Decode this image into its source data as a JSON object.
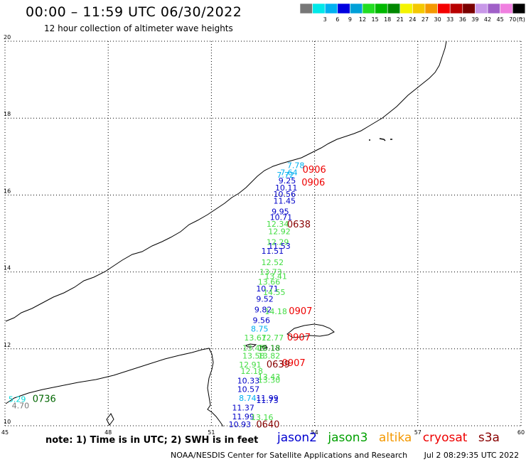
{
  "header": {
    "title": "00:00 – 11:59 UTC 06/30/2022",
    "subtitle": "12 hour collection of altimeter wave heights"
  },
  "legend": {
    "unit": "(ft)",
    "bins": [
      {
        "label": "",
        "color": "#777777"
      },
      {
        "label": "3",
        "color": "#00e8e8"
      },
      {
        "label": "6",
        "color": "#00b0f0"
      },
      {
        "label": "9",
        "color": "#0000e0"
      },
      {
        "label": "12",
        "color": "#00a0d8"
      },
      {
        "label": "15",
        "color": "#22dd22"
      },
      {
        "label": "18",
        "color": "#00b800"
      },
      {
        "label": "21",
        "color": "#008800"
      },
      {
        "label": "24",
        "color": "#f4f400"
      },
      {
        "label": "27",
        "color": "#f4c800"
      },
      {
        "label": "30",
        "color": "#f49800"
      },
      {
        "label": "33",
        "color": "#f40000"
      },
      {
        "label": "36",
        "color": "#b80000"
      },
      {
        "label": "39",
        "color": "#7a0000"
      },
      {
        "label": "42",
        "color": "#c898e8"
      },
      {
        "label": "45",
        "color": "#a060c8"
      },
      {
        "label": "70",
        "color": "#f080e0"
      },
      {
        "label": "",
        "color": "#000000"
      }
    ]
  },
  "axes": {
    "x_ticks": [
      "45",
      "48",
      "51",
      "54",
      "57",
      "60"
    ],
    "y_ticks": [
      "10",
      "12",
      "14",
      "16",
      "18",
      "20"
    ],
    "x_range": [
      45,
      60
    ],
    "y_range": [
      10,
      20
    ]
  },
  "observations": [
    {
      "text": "7.78",
      "lon": 53.2,
      "lat": 16.7,
      "color": "#00b0f0"
    },
    {
      "text": "7.64",
      "lon": 53.0,
      "lat": 16.52,
      "color": "#00b0f0"
    },
    {
      "text": "7.72",
      "lon": 52.9,
      "lat": 16.45,
      "color": "#00b0f0"
    },
    {
      "text": "9.25",
      "lon": 52.95,
      "lat": 16.3,
      "color": "#0000c8"
    },
    {
      "text": "10.11",
      "lon": 52.85,
      "lat": 16.12,
      "color": "#0000c8"
    },
    {
      "text": "10.56",
      "lon": 52.8,
      "lat": 15.95,
      "color": "#0000c8"
    },
    {
      "text": "11.45",
      "lon": 52.8,
      "lat": 15.78,
      "color": "#0000c8"
    },
    {
      "text": "9.95",
      "lon": 52.75,
      "lat": 15.5,
      "color": "#0000c8"
    },
    {
      "text": "10.71",
      "lon": 52.7,
      "lat": 15.35,
      "color": "#0000c8"
    },
    {
      "text": "12.34",
      "lon": 52.6,
      "lat": 15.18,
      "color": "#44dd44"
    },
    {
      "text": "12.92",
      "lon": 52.65,
      "lat": 14.98,
      "color": "#44dd44"
    },
    {
      "text": "12.29",
      "lon": 52.6,
      "lat": 14.7,
      "color": "#44dd44"
    },
    {
      "text": "11.53",
      "lon": 52.65,
      "lat": 14.6,
      "color": "#0000c8"
    },
    {
      "text": "11.51",
      "lon": 52.45,
      "lat": 14.47,
      "color": "#0000c8"
    },
    {
      "text": "12.52",
      "lon": 52.45,
      "lat": 14.18,
      "color": "#44dd44"
    },
    {
      "text": "13.73",
      "lon": 52.4,
      "lat": 13.93,
      "color": "#44dd44"
    },
    {
      "text": "13.41",
      "lon": 52.55,
      "lat": 13.82,
      "color": "#44dd44"
    },
    {
      "text": "13.66",
      "lon": 52.35,
      "lat": 13.67,
      "color": "#44dd44"
    },
    {
      "text": "10.71",
      "lon": 52.3,
      "lat": 13.49,
      "color": "#0000c8"
    },
    {
      "text": "14.55",
      "lon": 52.5,
      "lat": 13.4,
      "color": "#44dd44"
    },
    {
      "text": "9.52",
      "lon": 52.3,
      "lat": 13.23,
      "color": "#0000c8"
    },
    {
      "text": "9.82",
      "lon": 52.25,
      "lat": 12.95,
      "color": "#0000c8"
    },
    {
      "text": "14.18",
      "lon": 52.55,
      "lat": 12.9,
      "color": "#44dd44"
    },
    {
      "text": "9.56",
      "lon": 52.2,
      "lat": 12.67,
      "color": "#0000c8"
    },
    {
      "text": "8.75",
      "lon": 52.15,
      "lat": 12.45,
      "color": "#00b0f0"
    },
    {
      "text": "13.67",
      "lon": 51.95,
      "lat": 12.22,
      "color": "#44dd44"
    },
    {
      "text": "12.77",
      "lon": 52.45,
      "lat": 12.22,
      "color": "#44dd44"
    },
    {
      "text": "13.45",
      "lon": 51.9,
      "lat": 11.95,
      "color": "#44dd44"
    },
    {
      "text": "15.18",
      "lon": 52.35,
      "lat": 11.95,
      "color": "#008800"
    },
    {
      "text": "13.58",
      "lon": 51.9,
      "lat": 11.75,
      "color": "#44dd44"
    },
    {
      "text": "13.82",
      "lon": 52.35,
      "lat": 11.75,
      "color": "#44dd44"
    },
    {
      "text": "12.91",
      "lon": 51.8,
      "lat": 11.52,
      "color": "#44dd44"
    },
    {
      "text": "12.18",
      "lon": 51.85,
      "lat": 11.35,
      "color": "#44dd44"
    },
    {
      "text": "13.43",
      "lon": 52.35,
      "lat": 11.2,
      "color": "#44dd44"
    },
    {
      "text": "13.30",
      "lon": 52.35,
      "lat": 11.12,
      "color": "#44dd44"
    },
    {
      "text": "10.33",
      "lon": 51.75,
      "lat": 11.1,
      "color": "#0000c8"
    },
    {
      "text": "10.57",
      "lon": 51.75,
      "lat": 10.88,
      "color": "#0000c8"
    },
    {
      "text": "8.74",
      "lon": 51.8,
      "lat": 10.65,
      "color": "#00b0f0"
    },
    {
      "text": "11.99",
      "lon": 52.3,
      "lat": 10.65,
      "color": "#0000c8"
    },
    {
      "text": "11.73",
      "lon": 52.3,
      "lat": 10.59,
      "color": "#0000c8"
    },
    {
      "text": "11.37",
      "lon": 51.6,
      "lat": 10.4,
      "color": "#0000c8"
    },
    {
      "text": "11.99",
      "lon": 51.6,
      "lat": 10.17,
      "color": "#0000c8"
    },
    {
      "text": "13.16",
      "lon": 52.15,
      "lat": 10.15,
      "color": "#44dd44"
    },
    {
      "text": "10.93",
      "lon": 51.5,
      "lat": 9.96,
      "color": "#0000c8"
    },
    {
      "text": "5.29",
      "lon": 45.1,
      "lat": 10.62,
      "color": "#00d8d8"
    },
    {
      "text": "4.70",
      "lon": 45.2,
      "lat": 10.45,
      "color": "#777777"
    }
  ],
  "pass_times": [
    {
      "text": "0906",
      "lon": 53.65,
      "lat": 16.58,
      "color": "#ee0000"
    },
    {
      "text": "0906",
      "lon": 53.62,
      "lat": 16.25,
      "color": "#ee0000"
    },
    {
      "text": "0638",
      "lon": 53.2,
      "lat": 15.16,
      "color": "#880000"
    },
    {
      "text": "0907",
      "lon": 53.25,
      "lat": 12.9,
      "color": "#ee0000"
    },
    {
      "text": "0907",
      "lon": 53.2,
      "lat": 12.22,
      "color": "#ee0000"
    },
    {
      "text": "0907",
      "lon": 53.05,
      "lat": 11.55,
      "color": "#ee0000"
    },
    {
      "text": "0639",
      "lon": 52.6,
      "lat": 11.52,
      "color": "#880000"
    },
    {
      "text": "0640",
      "lon": 52.3,
      "lat": 9.95,
      "color": "#880000"
    },
    {
      "text": "0736",
      "lon": 45.8,
      "lat": 10.62,
      "color": "#006600"
    }
  ],
  "note": "note: 1) Time is in UTC; 2) SWH is in feet",
  "satellites": [
    {
      "name": "jason2",
      "color": "#0000d0"
    },
    {
      "name": "jason3",
      "color": "#00a000"
    },
    {
      "name": "altika",
      "color": "#f49800"
    },
    {
      "name": "cryosat",
      "color": "#ee0000"
    },
    {
      "name": "s3a",
      "color": "#880000"
    }
  ],
  "footer": {
    "credit": "NOAA/NESDIS Center for Satellite Applications and Research",
    "timestamp": "Jul  2 08:29:35 UTC 2022"
  }
}
